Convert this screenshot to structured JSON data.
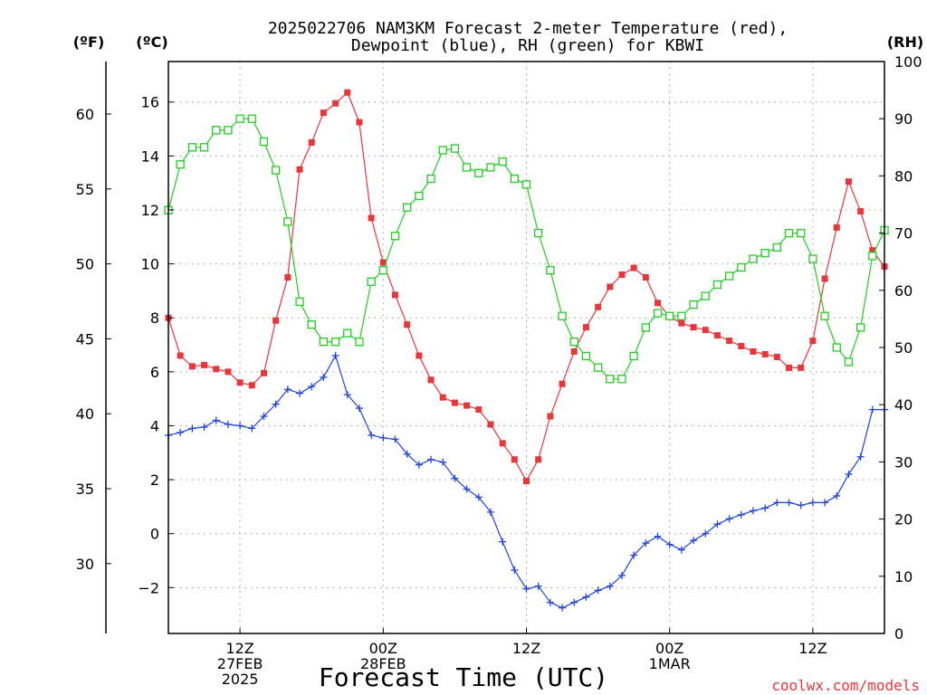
{
  "chart_data": {
    "type": "line",
    "title_line1": "2025022706 NAM3KM Forecast 2-meter Temperature (red),",
    "title_line2": "Dewpoint (blue), RH (green) for KBWI",
    "xlabel": "Forecast Time (UTC)",
    "axis_unit_labels": {
      "fahrenheit": "(ºF)",
      "celsius": "(ºC)",
      "rh": "(RH)"
    },
    "credit": "coolwx.com/models",
    "x_hours": [
      0,
      1,
      2,
      3,
      4,
      5,
      6,
      7,
      8,
      9,
      10,
      11,
      12,
      13,
      14,
      15,
      16,
      17,
      18,
      19,
      20,
      21,
      22,
      23,
      24,
      25,
      26,
      27,
      28,
      29,
      30,
      31,
      32,
      33,
      34,
      35,
      36,
      37,
      38,
      39,
      40,
      41,
      42,
      43,
      44,
      45,
      46,
      47,
      48,
      49,
      50,
      51,
      52,
      53,
      54,
      55,
      56,
      57,
      58,
      59,
      60
    ],
    "xlim": [
      0,
      60
    ],
    "x_ticks": [
      {
        "hour": 6,
        "lines": [
          "12Z",
          "27FEB",
          "2025"
        ]
      },
      {
        "hour": 18,
        "lines": [
          "00Z",
          "28FEB"
        ]
      },
      {
        "hour": 30,
        "lines": [
          "12Z"
        ]
      },
      {
        "hour": 42,
        "lines": [
          "00Z",
          "1MAR"
        ]
      },
      {
        "hour": 54,
        "lines": [
          "12Z"
        ]
      }
    ],
    "celsius_axis": {
      "ylim": [
        -3.7,
        17.5
      ],
      "ticks": [
        -2,
        0,
        2,
        4,
        6,
        8,
        10,
        12,
        14,
        16
      ],
      "tick_labels": [
        "−2",
        "0",
        "2",
        "4",
        "6",
        "8",
        "10",
        "12",
        "14",
        "16"
      ]
    },
    "fahrenheit_axis": {
      "ticks": [
        30,
        35,
        40,
        45,
        50,
        55,
        60
      ],
      "tick_labels": [
        "30",
        "35",
        "40",
        "45",
        "50",
        "55",
        "60"
      ]
    },
    "rh_axis": {
      "ylim": [
        0,
        100
      ],
      "ticks": [
        0,
        10,
        20,
        30,
        40,
        50,
        60,
        70,
        80,
        90,
        100
      ],
      "tick_labels": [
        "0",
        "10",
        "20",
        "30",
        "40",
        "50",
        "60",
        "70",
        "80",
        "90",
        "100"
      ]
    },
    "grid": true,
    "series": [
      {
        "name": "Temperature",
        "units": "C",
        "color": "#e8363a",
        "marker": "filled-square",
        "values": [
          8.0,
          6.6,
          6.2,
          6.25,
          6.1,
          6.0,
          5.6,
          5.5,
          5.95,
          7.9,
          9.5,
          13.5,
          14.5,
          15.6,
          15.95,
          16.35,
          15.25,
          11.7,
          10.05,
          8.85,
          7.75,
          6.6,
          5.7,
          5.05,
          4.85,
          4.75,
          4.6,
          4.05,
          3.35,
          2.75,
          1.95,
          2.75,
          4.35,
          5.55,
          6.75,
          7.65,
          8.4,
          9.15,
          9.6,
          9.85,
          9.5,
          8.55,
          8.05,
          7.8,
          7.65,
          7.55,
          7.35,
          7.15,
          6.95,
          6.75,
          6.65,
          6.55,
          6.15,
          6.15,
          7.15,
          9.45,
          11.35,
          13.05,
          11.95,
          10.5,
          9.9
        ]
      },
      {
        "name": "Dewpoint",
        "units": "C",
        "color": "#2244dd",
        "marker": "plus",
        "values": [
          3.65,
          3.75,
          3.9,
          3.95,
          4.2,
          4.05,
          4.0,
          3.9,
          4.35,
          4.8,
          5.35,
          5.2,
          5.45,
          5.8,
          6.6,
          5.15,
          4.65,
          3.65,
          3.55,
          3.5,
          2.95,
          2.55,
          2.75,
          2.65,
          2.05,
          1.65,
          1.35,
          0.8,
          -0.3,
          -1.35,
          -2.05,
          -1.95,
          -2.55,
          -2.75,
          -2.55,
          -2.35,
          -2.1,
          -1.95,
          -1.55,
          -0.8,
          -0.35,
          -0.1,
          -0.4,
          -0.6,
          -0.25,
          0.0,
          0.35,
          0.55,
          0.7,
          0.85,
          0.95,
          1.15,
          1.15,
          1.05,
          1.15,
          1.15,
          1.4,
          2.2,
          2.85,
          4.6,
          4.6
        ]
      },
      {
        "name": "RH",
        "units": "%",
        "color": "#22cc22",
        "marker": "open-square",
        "values": [
          74,
          82,
          85,
          85,
          88,
          88,
          90,
          90,
          86,
          81,
          72,
          58,
          54,
          51,
          51,
          52.5,
          51,
          61.5,
          63.5,
          69.5,
          74.5,
          76.5,
          79.5,
          84.5,
          84.8,
          81.5,
          80.5,
          81.5,
          82.5,
          79.5,
          78.5,
          70,
          63.5,
          55.5,
          51,
          48.5,
          46.5,
          44.5,
          44.5,
          48.5,
          53.5,
          56,
          55.5,
          55.5,
          57.5,
          59,
          61,
          62.5,
          64,
          65.5,
          66.5,
          67.5,
          70,
          70,
          65.5,
          55.5,
          50,
          47.5,
          53.5,
          66,
          70.5
        ]
      }
    ]
  }
}
